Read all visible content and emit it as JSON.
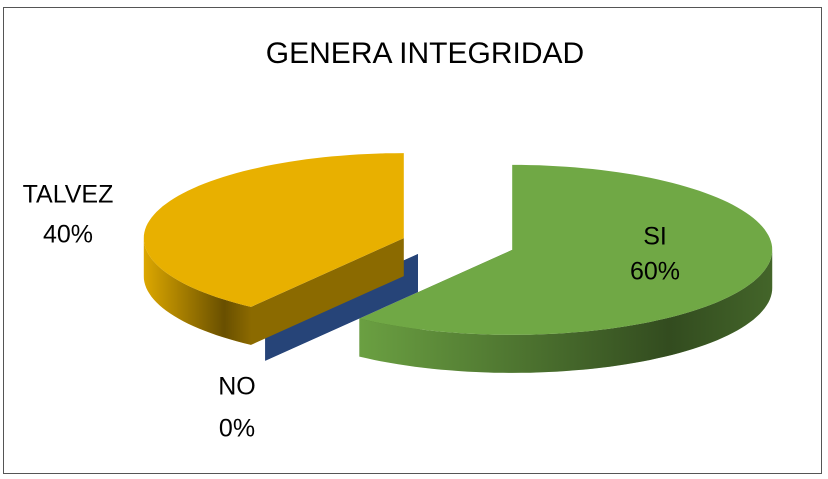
{
  "chart_data": {
    "type": "pie3d",
    "title": "GENERA INTEGRIDAD",
    "categories": [
      "SI",
      "NO",
      "TALVEZ"
    ],
    "values": [
      60,
      0,
      40
    ],
    "value_labels": [
      "60%",
      "0%",
      "40%"
    ],
    "colors": [
      "#70a845",
      "#264478",
      "#e8b000"
    ]
  }
}
